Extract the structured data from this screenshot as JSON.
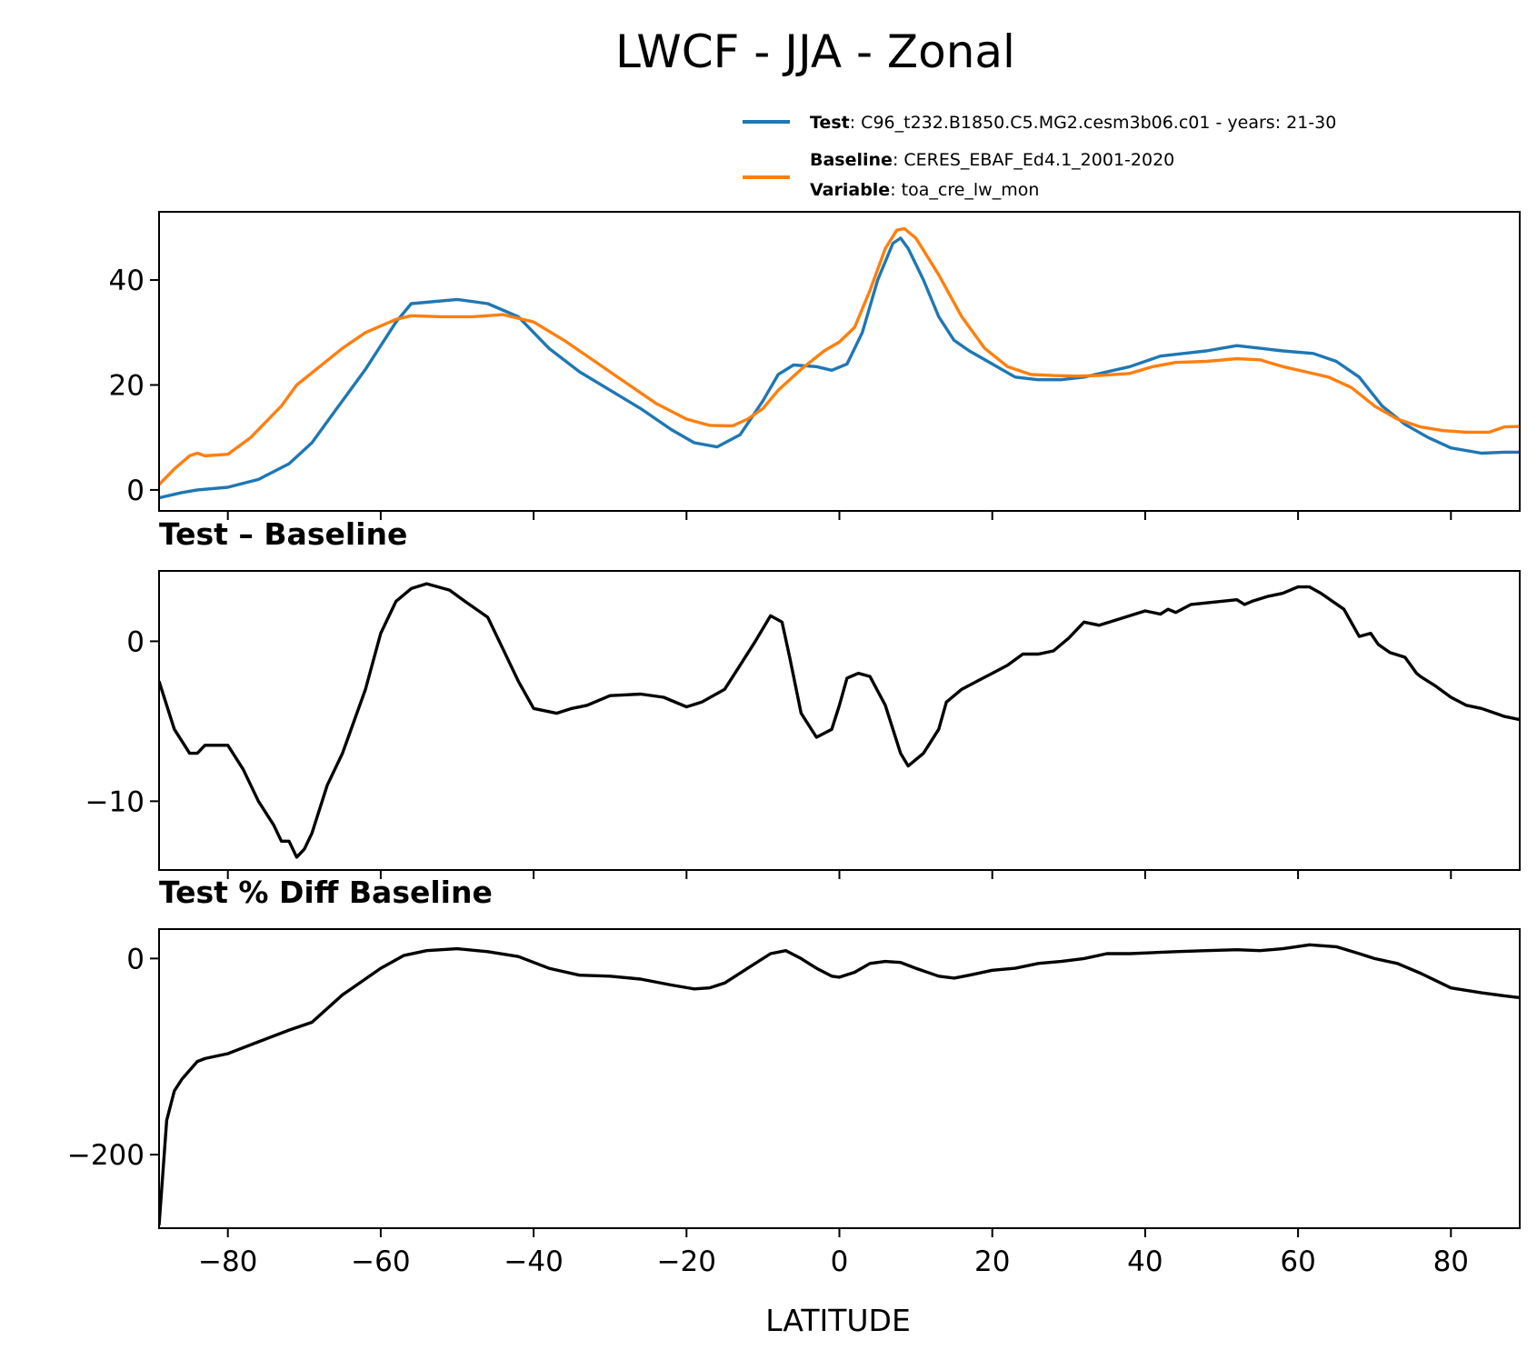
{
  "figure": {
    "title": "LWCF - JJA - Zonal"
  },
  "legend": {
    "test_key": "Test",
    "test_value": "C96_t232.B1850.C5.MG2.cesm3b06.c01 - years: 21-30",
    "baseline_key": "Baseline",
    "baseline_value": "CERES_EBAF_Ed4.1_2001-2020",
    "variable_key": "Variable",
    "variable_value": "toa_cre_lw_mon",
    "sep": ": "
  },
  "colors": {
    "test": "#1f77b4",
    "baseline": "#ff7f0e",
    "diff": "#000000"
  },
  "chart_data": [
    {
      "type": "line",
      "panel": "zonal",
      "title": "",
      "xlabel": "",
      "ylabel": "",
      "xlim": [
        -89,
        89
      ],
      "ylim": [
        -4,
        53
      ],
      "yticks": [
        0,
        20,
        40
      ],
      "ytick_labels": [
        "0",
        "20",
        "40"
      ],
      "xticks": [
        -80,
        -60,
        -40,
        -20,
        0,
        20,
        40,
        60,
        80
      ],
      "series": [
        {
          "name": "Test",
          "x": [
            -89,
            -86,
            -84,
            -80,
            -76,
            -72,
            -69,
            -66,
            -62,
            -58,
            -56,
            -50,
            -46,
            -42,
            -38,
            -34,
            -30,
            -26,
            -22,
            -19,
            -16,
            -13,
            -10,
            -8,
            -6,
            -3,
            -1,
            1,
            3,
            5,
            7,
            8,
            9,
            11,
            13,
            15,
            17,
            20,
            23,
            26,
            29,
            32,
            35,
            38,
            42,
            45,
            48,
            52,
            55,
            58,
            62,
            65,
            68,
            71,
            74,
            77,
            80,
            84,
            87,
            89
          ],
          "y": [
            -1.5,
            -0.5,
            0,
            0.5,
            2,
            5,
            9,
            15,
            23,
            32,
            35.5,
            36.3,
            35.5,
            33,
            27,
            22.5,
            19,
            15.5,
            11.5,
            9,
            8.2,
            10.5,
            17,
            22,
            23.8,
            23.5,
            22.8,
            24,
            30,
            40,
            47,
            48,
            46,
            40,
            33,
            28.5,
            26.5,
            24,
            21.5,
            21,
            21,
            21.5,
            22.5,
            23.5,
            25.5,
            26,
            26.5,
            27.5,
            27,
            26.5,
            26,
            24.5,
            21.5,
            16,
            12.5,
            10,
            8,
            7,
            7.2,
            7.2
          ]
        },
        {
          "name": "Baseline",
          "x": [
            -89,
            -87,
            -85,
            -84,
            -83,
            -80,
            -77,
            -75,
            -73,
            -71,
            -68,
            -65,
            -62,
            -58,
            -56,
            -52,
            -48,
            -44,
            -40,
            -36,
            -32,
            -28,
            -24,
            -20,
            -17,
            -14,
            -12,
            -10,
            -8,
            -5,
            -2,
            0,
            2,
            4,
            6,
            7.5,
            8.5,
            10,
            13,
            16,
            19,
            22,
            25,
            28,
            31,
            34,
            36,
            38,
            41,
            44,
            48,
            52,
            55,
            58,
            61,
            64,
            67,
            70,
            73,
            76,
            79,
            82,
            85,
            87,
            89
          ],
          "y": [
            1,
            4,
            6.5,
            7,
            6.5,
            6.8,
            10,
            13,
            16,
            20,
            23.5,
            27,
            30,
            32.5,
            33.2,
            33,
            33,
            33.4,
            32,
            28.5,
            24.5,
            20.5,
            16.5,
            13.5,
            12.3,
            12.2,
            13.5,
            15.5,
            19,
            23,
            26.5,
            28.2,
            31,
            38,
            46,
            49.5,
            49.8,
            48,
            41,
            33,
            27,
            23.5,
            22,
            21.8,
            21.7,
            21.8,
            22,
            22.2,
            23.5,
            24.3,
            24.5,
            25,
            24.8,
            23.5,
            22.5,
            21.5,
            19.5,
            16,
            13.5,
            12,
            11.3,
            11,
            11,
            12,
            12.1
          ]
        }
      ]
    },
    {
      "type": "line",
      "panel": "difference",
      "title": "Test – Baseline",
      "xlabel": "",
      "ylabel": "",
      "xlim": [
        -89,
        89
      ],
      "ylim": [
        -14.3,
        4.4
      ],
      "yticks": [
        -10,
        0
      ],
      "ytick_labels": [
        "−10",
        "0"
      ],
      "xticks": [
        -80,
        -60,
        -40,
        -20,
        0,
        20,
        40,
        60,
        80
      ],
      "series": [
        {
          "name": "",
          "x": [
            -89,
            -87,
            -85,
            -84,
            -83,
            -80,
            -78,
            -76,
            -74,
            -73,
            -72,
            -71,
            -70,
            -69,
            -67,
            -65,
            -62,
            -60,
            -58,
            -56,
            -54,
            -51,
            -49,
            -46,
            -44,
            -42,
            -40,
            -37,
            -35,
            -33,
            -30,
            -26,
            -23,
            -20,
            -18,
            -15,
            -13,
            -11,
            -9,
            -7.5,
            -6.5,
            -5,
            -3,
            -1,
            0,
            1,
            2.5,
            4,
            6,
            8,
            9,
            11,
            13,
            14,
            16,
            18,
            20,
            22,
            24,
            26,
            28,
            30,
            32,
            34,
            36,
            38,
            40,
            42,
            43,
            44,
            46,
            48,
            50,
            52,
            53,
            54,
            56,
            58,
            60,
            61.5,
            63,
            66,
            68,
            69.5,
            70.5,
            72,
            74,
            75.5,
            76,
            78,
            80,
            82,
            84,
            87,
            89
          ],
          "y": [
            -2.5,
            -5.5,
            -7,
            -7,
            -6.5,
            -6.5,
            -8,
            -10,
            -11.5,
            -12.5,
            -12.5,
            -13.5,
            -13,
            -12,
            -9,
            -7,
            -3,
            0.5,
            2.5,
            3.3,
            3.6,
            3.2,
            2.5,
            1.5,
            -0.5,
            -2.5,
            -4.2,
            -4.5,
            -4.2,
            -4,
            -3.4,
            -3.3,
            -3.5,
            -4.1,
            -3.8,
            -3,
            -1.5,
            0,
            1.6,
            1.2,
            -1,
            -4.5,
            -6,
            -5.5,
            -4,
            -2.3,
            -2,
            -2.2,
            -4,
            -7,
            -7.8,
            -7,
            -5.5,
            -3.8,
            -3,
            -2.5,
            -2,
            -1.5,
            -0.8,
            -0.8,
            -0.6,
            0.2,
            1.2,
            1,
            1.3,
            1.6,
            1.9,
            1.7,
            2,
            1.8,
            2.3,
            2.4,
            2.5,
            2.6,
            2.3,
            2.5,
            2.8,
            3,
            3.4,
            3.4,
            3,
            2,
            0.3,
            0.5,
            -0.2,
            -0.7,
            -1,
            -2,
            -2.2,
            -2.8,
            -3.5,
            -4,
            -4.2,
            -4.7,
            -4.9
          ]
        }
      ]
    },
    {
      "type": "line",
      "panel": "percent_difference",
      "title": "Test % Diff Baseline",
      "xlabel": "LATITUDE",
      "ylabel": "",
      "xlim": [
        -89,
        89
      ],
      "ylim": [
        -275,
        30
      ],
      "yticks": [
        -200,
        0
      ],
      "ytick_labels": [
        "−200",
        "0"
      ],
      "xticks": [
        -80,
        -60,
        -40,
        -20,
        0,
        20,
        40,
        60,
        80
      ],
      "xtick_labels": [
        "−80",
        "−60",
        "−40",
        "−20",
        "0",
        "20",
        "40",
        "60",
        "80"
      ],
      "series": [
        {
          "name": "",
          "x": [
            -89,
            -88,
            -87,
            -86,
            -84,
            -83,
            -80,
            -76,
            -72,
            -69,
            -65,
            -60,
            -57,
            -54,
            -50,
            -46,
            -42,
            -38,
            -34,
            -30,
            -26,
            -22,
            -19,
            -17,
            -15,
            -12,
            -9,
            -7,
            -5,
            -3,
            -1,
            0,
            2,
            4,
            6,
            8,
            10,
            13,
            15,
            17,
            20,
            23,
            26,
            29,
            32,
            35,
            38,
            41,
            44,
            48,
            52,
            55,
            58,
            61.5,
            65,
            68,
            70,
            73,
            76,
            80,
            84,
            87,
            89
          ],
          "y": [
            -272,
            -165,
            -135,
            -123,
            -105,
            -102,
            -97,
            -85,
            -73,
            -65,
            -37,
            -10,
            3,
            8,
            10,
            7,
            2,
            -10,
            -17,
            -18,
            -21,
            -27,
            -31,
            -30,
            -25,
            -10,
            5,
            8,
            0,
            -10,
            -18,
            -19,
            -14,
            -5,
            -3,
            -4,
            -10,
            -18,
            -20,
            -17,
            -12,
            -10,
            -5,
            -3,
            0,
            5,
            5,
            6,
            7,
            8,
            9,
            8,
            10,
            14,
            12,
            5,
            0,
            -5,
            -15,
            -30,
            -35,
            -38,
            -40
          ]
        }
      ]
    }
  ]
}
